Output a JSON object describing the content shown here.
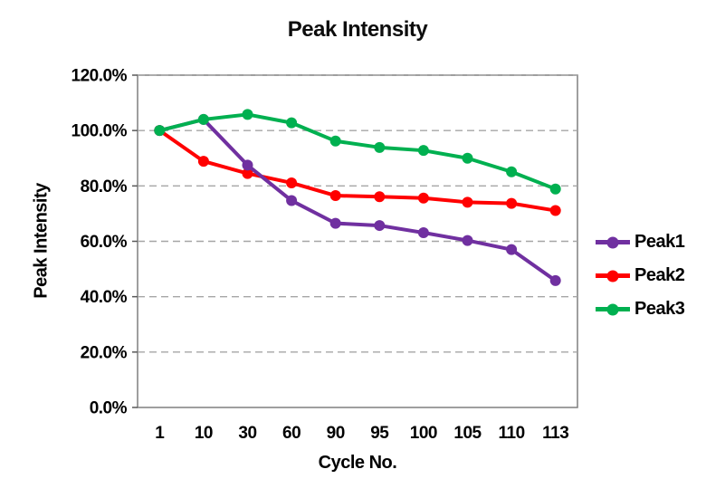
{
  "chart_data": {
    "type": "line",
    "title": "Peak Intensity",
    "xlabel": "Cycle No.",
    "ylabel": "Peak Intensity",
    "categories": [
      "1",
      "10",
      "30",
      "60",
      "90",
      "95",
      "100",
      "105",
      "110",
      "113"
    ],
    "series": [
      {
        "name": "Peak1",
        "color": "#7030A0",
        "values": [
          100.0,
          104.0,
          87.5,
          74.7,
          66.5,
          65.7,
          63.1,
          60.3,
          57.0,
          45.8
        ]
      },
      {
        "name": "Peak2",
        "color": "#FF0000",
        "values": [
          100.0,
          88.9,
          84.5,
          81.1,
          76.5,
          76.1,
          75.6,
          74.1,
          73.7,
          71.1
        ]
      },
      {
        "name": "Peak3",
        "color": "#00B050",
        "values": [
          100.0,
          104.0,
          105.8,
          102.8,
          96.2,
          93.9,
          92.8,
          90.0,
          85.1,
          78.9
        ]
      }
    ],
    "draw_order": [
      1,
      0,
      2
    ],
    "ylim": [
      0,
      120
    ],
    "ytick_step": 20,
    "yticklabels": [
      "0.0%",
      "20.0%",
      "40.0%",
      "60.0%",
      "80.0%",
      "100.0%",
      "120.0%"
    ],
    "grid": {
      "axis": "y",
      "style": "dashed",
      "color": "#A6A6A6"
    },
    "plot_border_color": "#7F7F7F",
    "axis_tick_color": "#595959",
    "text_color": "#000000",
    "legend_position": "right"
  }
}
